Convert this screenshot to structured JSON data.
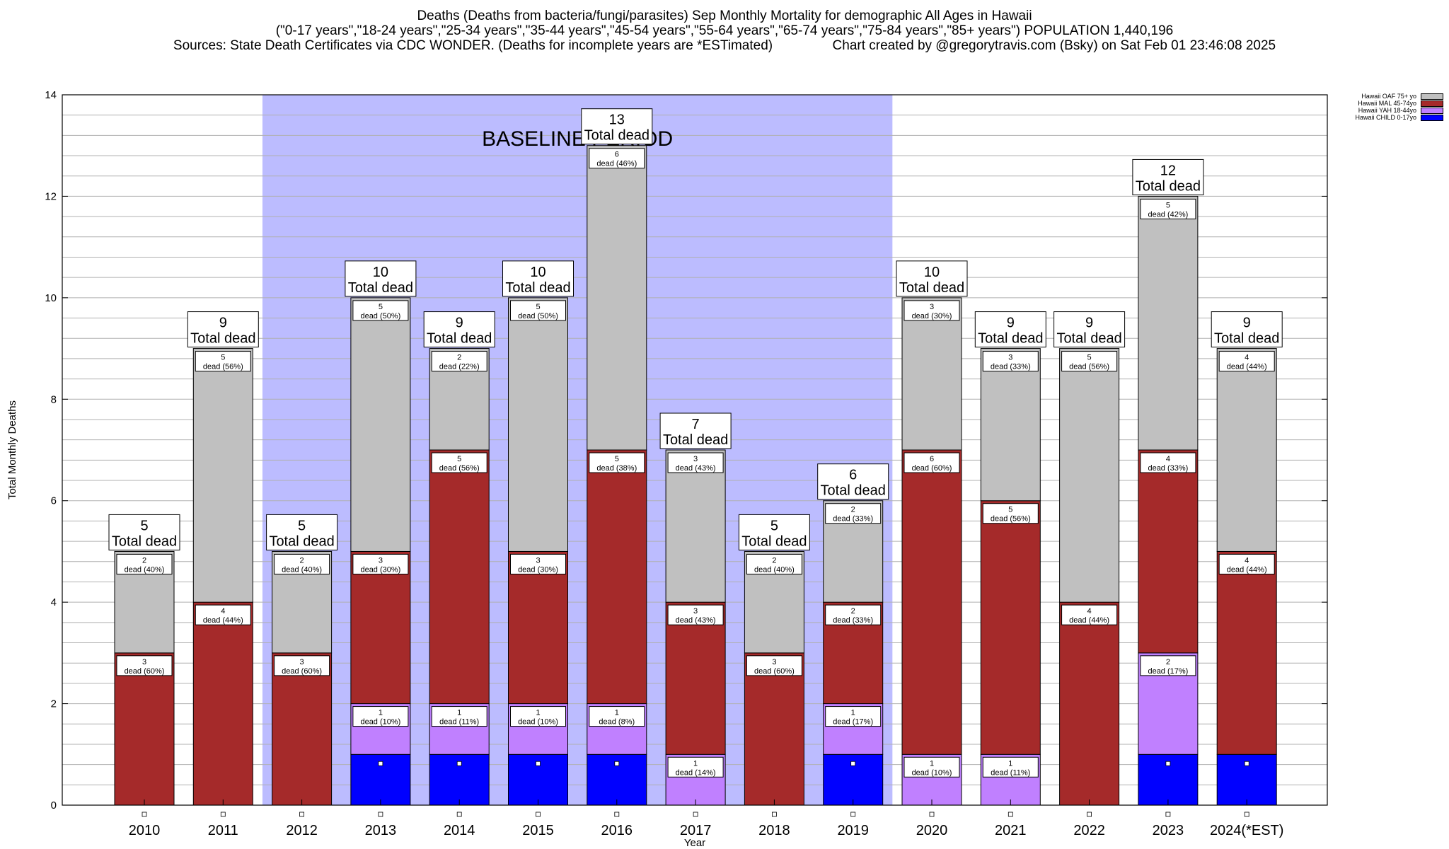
{
  "header": {
    "line1": "Deaths (Deaths from bacteria/fungi/parasites) Sep Monthly Mortality for demographic All Ages in Hawaii",
    "line2": "(\"0-17 years\",\"18-24 years\",\"25-34 years\",\"35-44 years\",\"45-54 years\",\"55-64 years\",\"65-74 years\",\"75-84 years\",\"85+ years\") POPULATION 1,440,196",
    "line3": "Sources: State Death Certificates via CDC WONDER. (Deaths for incomplete years are *ESTimated)                Chart created by @gregorytravis.com (Bsky) on Sat Feb 01 23:46:08 2025"
  },
  "chart_data": {
    "type": "bar",
    "stacked": true,
    "xlabel": "Year",
    "ylabel": "Total Monthly Deaths",
    "ylim": [
      0,
      14
    ],
    "yticks": [
      0,
      2,
      4,
      6,
      8,
      10,
      12,
      14
    ],
    "grid": true,
    "legend_position": "top-right",
    "baseline_label": "BASELINE PERIOD",
    "baseline_range": [
      "2012",
      "2019"
    ],
    "total_suffix": "Total dead",
    "segment_word": "dead",
    "categories": [
      "2010",
      "2011",
      "2012",
      "2013",
      "2014",
      "2015",
      "2016",
      "2017",
      "2018",
      "2019",
      "2020",
      "2021",
      "2022",
      "2023",
      "2024(*EST)"
    ],
    "totals": [
      5,
      9,
      5,
      10,
      9,
      10,
      13,
      7,
      5,
      6,
      10,
      9,
      9,
      12,
      9
    ],
    "series": [
      {
        "name": "Hawaii CHILD 0-17yo",
        "color": "#0000ff",
        "values": [
          0,
          0,
          0,
          1,
          1,
          1,
          1,
          0,
          0,
          1,
          0,
          0,
          0,
          1,
          1
        ],
        "pct": [
          "",
          "",
          "",
          "",
          "",
          "",
          "",
          "",
          "",
          "",
          "",
          "",
          "",
          "",
          ""
        ]
      },
      {
        "name": "Hawaii YAH 18-44yo",
        "color": "#c080ff",
        "values": [
          0,
          0,
          0,
          1,
          1,
          1,
          1,
          1,
          0,
          1,
          1,
          1,
          0,
          2,
          0
        ],
        "pct": [
          "",
          "",
          "",
          "10%",
          "11%",
          "10%",
          "8%",
          "14%",
          "",
          "17%",
          "10%",
          "11%",
          "",
          "17%",
          ""
        ]
      },
      {
        "name": "Hawaii MAL 45-74yo",
        "color": "#a52a2a",
        "values": [
          3,
          4,
          3,
          3,
          5,
          3,
          5,
          3,
          3,
          2,
          6,
          5,
          4,
          4,
          4
        ],
        "pct": [
          "60%",
          "44%",
          "60%",
          "30%",
          "56%",
          "30%",
          "38%",
          "43%",
          "60%",
          "33%",
          "60%",
          "56%",
          "44%",
          "33%",
          "44%"
        ]
      },
      {
        "name": "Hawaii OAF 75+ yo",
        "color": "#c0c0c0",
        "values": [
          2,
          5,
          2,
          5,
          2,
          5,
          6,
          3,
          2,
          2,
          3,
          3,
          5,
          5,
          4
        ],
        "pct": [
          "40%",
          "56%",
          "40%",
          "50%",
          "22%",
          "50%",
          "46%",
          "43%",
          "40%",
          "33%",
          "30%",
          "33%",
          "56%",
          "42%",
          "44%"
        ]
      }
    ]
  }
}
